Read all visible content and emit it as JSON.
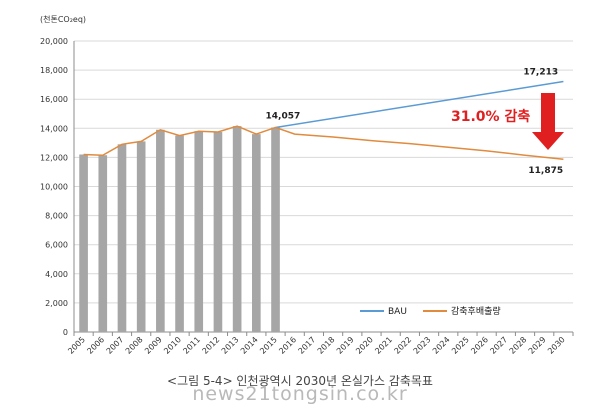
{
  "chart_data": {
    "type": "bar",
    "unit_label": "(천톤CO₂eq)",
    "years": [
      "2005",
      "2006",
      "2007",
      "2008",
      "2009",
      "2010",
      "2011",
      "2012",
      "2013",
      "2014",
      "2015",
      "2016",
      "2017",
      "2018",
      "2019",
      "2020",
      "2021",
      "2022",
      "2023",
      "2024",
      "2025",
      "2026",
      "2027",
      "2028",
      "2029",
      "2030"
    ],
    "ylim": [
      0,
      20000
    ],
    "yticks": [
      "0",
      "2,000",
      "4,000",
      "6,000",
      "8,000",
      "10,000",
      "12,000",
      "14,000",
      "16,000",
      "18,000",
      "20,000"
    ],
    "grid": true,
    "legend_position": "bottom-right",
    "series": [
      {
        "name": "",
        "type": "bar",
        "color": "#a6a6a6",
        "x": [
          "2005",
          "2006",
          "2007",
          "2008",
          "2009",
          "2010",
          "2011",
          "2012",
          "2013",
          "2014",
          "2015"
        ],
        "values": [
          12200,
          12150,
          12900,
          13100,
          13900,
          13500,
          13800,
          13750,
          14150,
          13600,
          14057
        ]
      },
      {
        "name": "",
        "type": "line",
        "color": "#e08b3e",
        "x": [
          "2005",
          "2006",
          "2007",
          "2008",
          "2009",
          "2010",
          "2011",
          "2012",
          "2013",
          "2014",
          "2015"
        ],
        "values": [
          12200,
          12150,
          12900,
          13100,
          13900,
          13500,
          13800,
          13750,
          14150,
          13600,
          14057
        ]
      },
      {
        "name": "BAU",
        "type": "line",
        "color": "#5b9bd5",
        "x": [
          "2015",
          "2030"
        ],
        "values": [
          14057,
          17213
        ]
      },
      {
        "name": "감축후배출량",
        "type": "line",
        "color": "#e08b3e",
        "x": [
          "2015",
          "2016",
          "2018",
          "2020",
          "2022",
          "2024",
          "2026",
          "2028",
          "2030"
        ],
        "values": [
          14057,
          13600,
          13400,
          13150,
          12950,
          12700,
          12450,
          12150,
          11875
        ]
      }
    ],
    "annotations": {
      "value_2015": "14,057",
      "value_bau_2030": "17,213",
      "value_reduced_2030": "11,875",
      "reduction_text": "31.0% 감축"
    },
    "annotation_color": "#e02020"
  },
  "caption": "<그림 5-4> 인천광역시 2030년 온실가스 감축목표",
  "watermark": "news21tongsin.co.kr"
}
